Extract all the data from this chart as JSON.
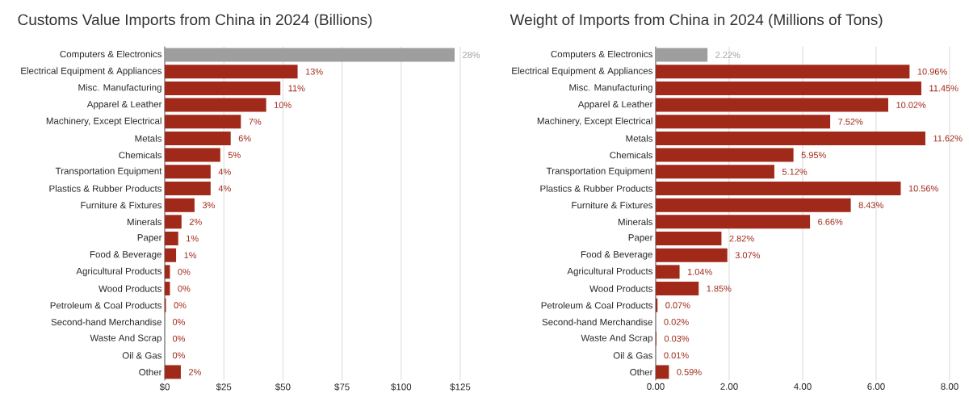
{
  "chart_data": [
    {
      "type": "bar",
      "orientation": "horizontal",
      "title": "Customs Value Imports from China in 2024 (Billions)",
      "categories": [
        "Computers & Electronics",
        "Electrical Equipment & Appliances",
        "Misc. Manufacturing",
        "Apparel & Leather",
        "Machinery, Except Electrical",
        "Metals",
        "Chemicals",
        "Transportation Equipment",
        "Plastics & Rubber Products",
        "Furniture & Fixtures",
        "Minerals",
        "Paper",
        "Food & Beverage",
        "Agricultural Products",
        "Wood Products",
        "Petroleum & Coal Products",
        "Second-hand Merchandise",
        "Waste And Scrap",
        "Oil & Gas",
        "Other"
      ],
      "values": [
        122.6,
        56.2,
        48.9,
        42.9,
        32.2,
        27.9,
        23.5,
        19.4,
        19.4,
        12.6,
        7.1,
        5.7,
        4.8,
        2.2,
        2.2,
        0.5,
        0,
        0,
        0,
        6.8
      ],
      "colors": [
        "#9e9e9e",
        "#a0291a",
        "#a0291a",
        "#a0291a",
        "#a0291a",
        "#a0291a",
        "#a0291a",
        "#a0291a",
        "#a0291a",
        "#a0291a",
        "#a0291a",
        "#a0291a",
        "#a0291a",
        "#a0291a",
        "#a0291a",
        "#a0291a",
        "#a0291a",
        "#a0291a",
        "#a0291a",
        "#a0291a"
      ],
      "annotations": [
        {
          "text": "28%",
          "x": 122.6,
          "y": "Computers & Electronics"
        },
        {
          "text": "13%",
          "x": 56.2,
          "y": "Electrical Equipment & Appliances"
        },
        {
          "text": "11%",
          "x": 48.9,
          "y": "Misc. Manufacturing"
        },
        {
          "text": "10%",
          "x": 42.9,
          "y": "Apparel & Leather"
        },
        {
          "text": "7%",
          "x": 32.2,
          "y": "Machinery, Except Electrical"
        },
        {
          "text": "6%",
          "x": 27.9,
          "y": "Metals"
        },
        {
          "text": "5%",
          "x": 23.5,
          "y": "Chemicals"
        },
        {
          "text": "4%",
          "x": 19.4,
          "y": "Transportation Equipment"
        },
        {
          "text": "4%",
          "x": 19.4,
          "y": "Plastics & Rubber Products"
        },
        {
          "text": "3%",
          "x": 12.6,
          "y": "Furniture & Fixtures"
        },
        {
          "text": "2%",
          "x": 7.1,
          "y": "Minerals"
        },
        {
          "text": "1%",
          "x": 5.7,
          "y": "Paper"
        },
        {
          "text": "1%",
          "x": 4.8,
          "y": "Food & Beverage"
        },
        {
          "text": "0%",
          "x": 2.2,
          "y": "Agricultural Products"
        },
        {
          "text": "0%",
          "x": 2.2,
          "y": "Wood Products"
        },
        {
          "text": "0%",
          "x": 0.5,
          "y": "Petroleum & Coal Products"
        },
        {
          "text": "0%",
          "x": 0,
          "y": "Second-hand Merchandise"
        },
        {
          "text": "0%",
          "x": 0,
          "y": "Waste And Scrap"
        },
        {
          "text": "0%",
          "x": 0,
          "y": "Oil & Gas"
        },
        {
          "text": "2%",
          "x": 6.8,
          "y": "Other"
        }
      ],
      "xlim": [
        0,
        125
      ],
      "xticks": [
        {
          "value": 0,
          "label": "$0"
        },
        {
          "value": 25,
          "label": "$25"
        },
        {
          "value": 50,
          "label": "$50"
        },
        {
          "value": 75,
          "label": "$75"
        },
        {
          "value": 100,
          "label": "$100"
        },
        {
          "value": 125,
          "label": "$125"
        }
      ],
      "grid": "x"
    },
    {
      "type": "bar",
      "orientation": "horizontal",
      "title": "Weight of Imports from China in 2024 (Millions of Tons)",
      "categories": [
        "Computers & Electronics",
        "Electrical Equipment & Appliances",
        "Misc. Manufacturing",
        "Apparel & Leather",
        "Machinery, Except Electrical",
        "Metals",
        "Chemicals",
        "Transportation Equipment",
        "Plastics & Rubber Products",
        "Furniture & Fixtures",
        "Minerals",
        "Paper",
        "Food & Beverage",
        "Agricultural Products",
        "Wood Products",
        "Petroleum & Coal Products",
        "Second-hand Merchandise",
        "Waste And Scrap",
        "Oil & Gas",
        "Other"
      ],
      "values": [
        1.41,
        6.91,
        7.23,
        6.33,
        4.75,
        7.34,
        3.75,
        3.23,
        6.67,
        5.31,
        4.2,
        1.79,
        1.95,
        0.65,
        1.17,
        0.05,
        null,
        0.02,
        null,
        0.36
      ],
      "colors": [
        "#9e9e9e",
        "#a0291a",
        "#a0291a",
        "#a0291a",
        "#a0291a",
        "#a0291a",
        "#a0291a",
        "#a0291a",
        "#a0291a",
        "#a0291a",
        "#a0291a",
        "#a0291a",
        "#a0291a",
        "#a0291a",
        "#a0291a",
        "#a0291a",
        "#a0291a",
        "#a0291a",
        "#a0291a",
        "#a0291a"
      ],
      "annotations": [
        {
          "text": "2.22%",
          "x": 1.41,
          "y": "Computers & Electronics"
        },
        {
          "text": "10.96%",
          "x": 6.91,
          "y": "Electrical Equipment & Appliances"
        },
        {
          "text": "11.45%",
          "x": 7.23,
          "y": "Misc. Manufacturing"
        },
        {
          "text": "10.02%",
          "x": 6.33,
          "y": "Apparel & Leather"
        },
        {
          "text": "7.52%",
          "x": 4.75,
          "y": "Machinery, Except Electrical"
        },
        {
          "text": "11.62%",
          "x": 7.34,
          "y": "Metals"
        },
        {
          "text": "5.95%",
          "x": 3.75,
          "y": "Chemicals"
        },
        {
          "text": "5.12%",
          "x": 3.23,
          "y": "Transportation Equipment"
        },
        {
          "text": "10.56%",
          "x": 6.67,
          "y": "Plastics & Rubber Products"
        },
        {
          "text": "8.43%",
          "x": 5.31,
          "y": "Furniture & Fixtures"
        },
        {
          "text": "6.66%",
          "x": 4.2,
          "y": "Minerals"
        },
        {
          "text": "2.82%",
          "x": 1.79,
          "y": "Paper"
        },
        {
          "text": "3.07%",
          "x": 1.95,
          "y": "Food & Beverage"
        },
        {
          "text": "1.04%",
          "x": 0.65,
          "y": "Agricultural Products"
        },
        {
          "text": "1.85%",
          "x": 1.17,
          "y": "Wood Products"
        },
        {
          "text": "0.07%",
          "x": 0.05,
          "y": "Petroleum & Coal Products"
        },
        {
          "text": "0.02%",
          "x": 0.01,
          "y": "Second-hand Merchandise"
        },
        {
          "text": "0.03%",
          "x": 0.02,
          "y": "Waste And Scrap"
        },
        {
          "text": "0.01%",
          "x": 0.01,
          "y": "Oil & Gas"
        },
        {
          "text": "0.59%",
          "x": 0.36,
          "y": "Other"
        }
      ],
      "xlim": [
        0,
        8
      ],
      "xticks": [
        {
          "value": 0,
          "label": "0.00"
        },
        {
          "value": 2,
          "label": "2.00"
        },
        {
          "value": 4,
          "label": "4.00"
        },
        {
          "value": 6,
          "label": "6.00"
        },
        {
          "value": 8,
          "label": "8.00"
        }
      ],
      "grid": "x"
    }
  ]
}
